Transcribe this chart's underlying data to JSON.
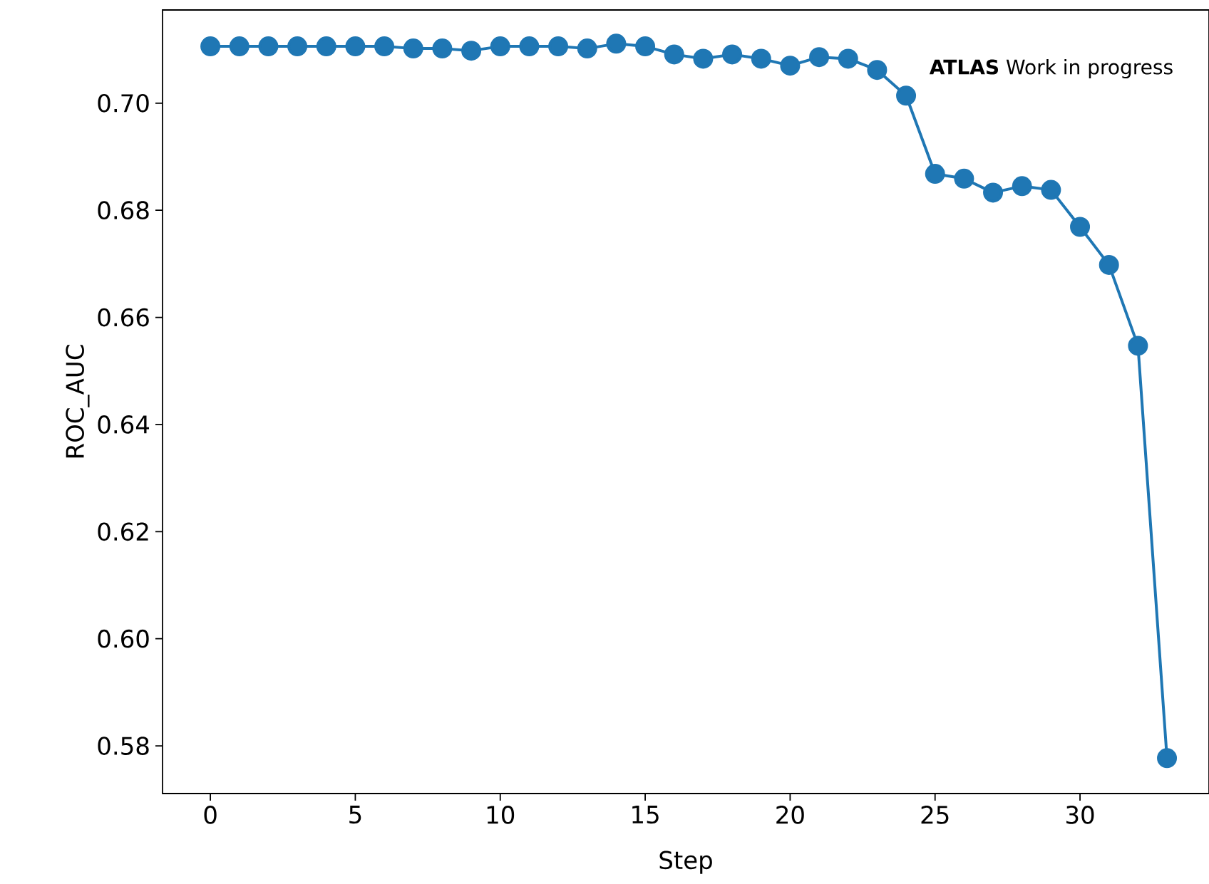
{
  "chart_data": {
    "type": "line",
    "xlabel": "Step",
    "ylabel": "ROC_AUC",
    "annotations": [
      "**ATLAS** Work in progress"
    ],
    "x": [
      0,
      1,
      2,
      3,
      4,
      5,
      6,
      7,
      8,
      9,
      10,
      11,
      12,
      13,
      14,
      15,
      16,
      17,
      18,
      19,
      20,
      21,
      22,
      23,
      24,
      25,
      26,
      27,
      28,
      29,
      30,
      31,
      32,
      33
    ],
    "series": [
      {
        "color": "#1f77b4",
        "values": [
          0.7106,
          0.7106,
          0.7106,
          0.7106,
          0.7106,
          0.7106,
          0.7106,
          0.7102,
          0.7102,
          0.7098,
          0.7106,
          0.7106,
          0.7106,
          0.7102,
          0.7111,
          0.7106,
          0.7091,
          0.7083,
          0.7091,
          0.7083,
          0.707,
          0.7086,
          0.7083,
          0.7062,
          0.7014,
          0.6868,
          0.6859,
          0.6833,
          0.6845,
          0.6838,
          0.6769,
          0.6698,
          0.6547,
          0.5777
        ]
      }
    ],
    "xlim": [
      -1.65,
      34.45
    ],
    "ylim": [
      0.5711,
      0.7174
    ],
    "xticks": [
      0,
      5,
      10,
      15,
      20,
      25,
      30
    ],
    "yticks": [
      {
        "value": 0.58,
        "label": "0.58"
      },
      {
        "value": 0.6,
        "label": "0.60"
      },
      {
        "value": 0.62,
        "label": "0.62"
      },
      {
        "value": 0.64,
        "label": "0.64"
      },
      {
        "value": 0.66,
        "label": "0.66"
      },
      {
        "value": 0.68,
        "label": "0.68"
      },
      {
        "value": 0.7,
        "label": "0.70"
      }
    ],
    "marker": "circle",
    "line_style": "solid"
  }
}
